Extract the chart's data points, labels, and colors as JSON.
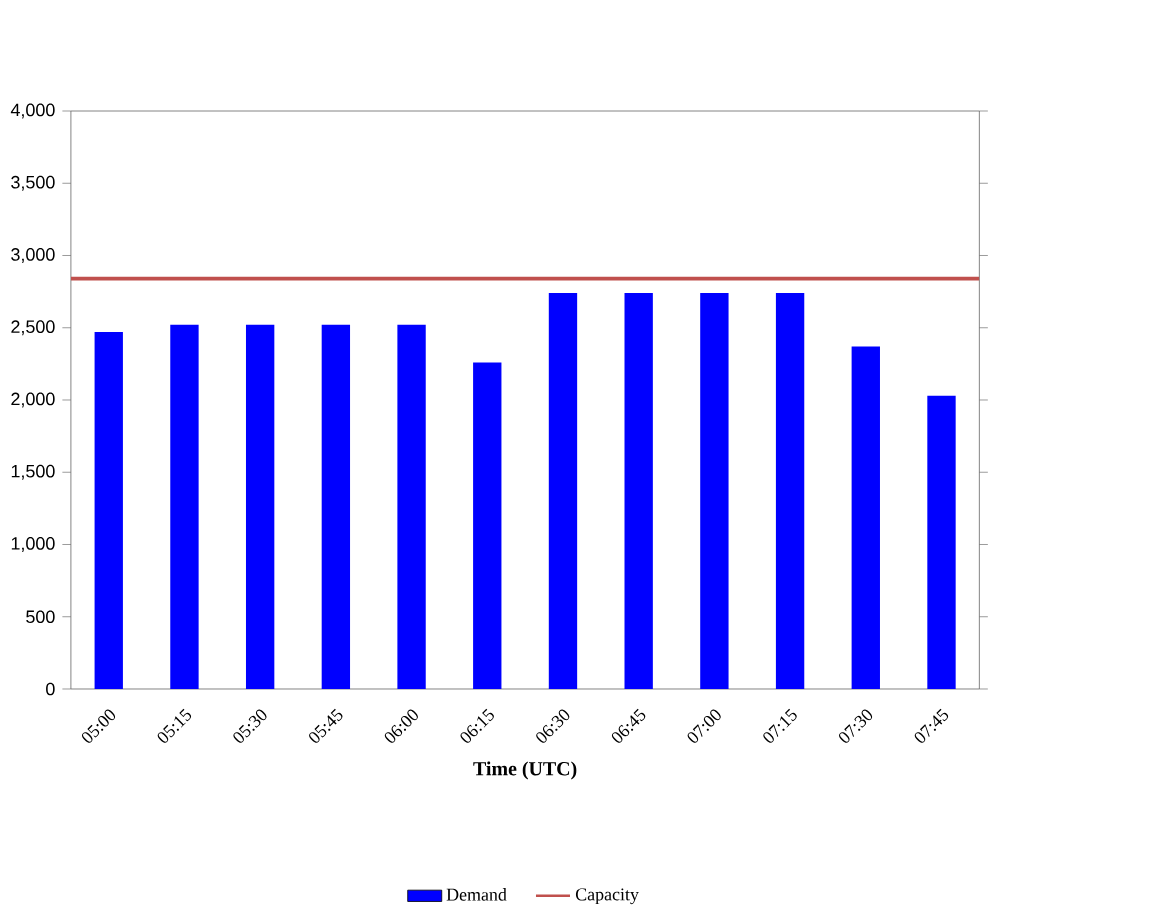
{
  "chart_data": {
    "type": "bar",
    "xlabel": "Time  (UTC)",
    "categories": [
      "05:00",
      "05:15",
      "05:30",
      "05:45",
      "06:00",
      "06:15",
      "06:30",
      "06:45",
      "07:00",
      "07:15",
      "07:30",
      "07:45"
    ],
    "series": [
      {
        "name": "Demand",
        "color": "#0000ff",
        "values": [
          2470,
          2520,
          2520,
          2520,
          2520,
          2260,
          2740,
          2740,
          2740,
          2740,
          2370,
          2030
        ]
      }
    ],
    "ref_lines": [
      {
        "axis": "y",
        "value": 2840,
        "label": "Capacity",
        "color": "#c0504d"
      }
    ],
    "ylim": [
      0,
      4000
    ],
    "yticks": [
      {
        "value": 0,
        "label": "0"
      },
      {
        "value": 500,
        "label": "500"
      },
      {
        "value": 1000,
        "label": "1,000"
      },
      {
        "value": 1500,
        "label": "1,500"
      },
      {
        "value": 2000,
        "label": "2,000"
      },
      {
        "value": 2500,
        "label": "2,500"
      },
      {
        "value": 3000,
        "label": "3,000"
      },
      {
        "value": 3500,
        "label": "3,500"
      },
      {
        "value": 4000,
        "label": "4,000"
      }
    ],
    "grid": false,
    "legend": "bottom"
  }
}
